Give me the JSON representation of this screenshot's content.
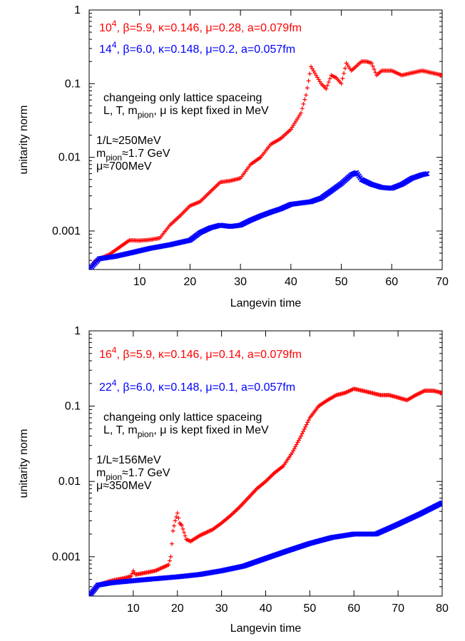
{
  "chart_data": [
    {
      "type": "scatter",
      "xlabel": "Langevin time",
      "ylabel": "unitarity norm",
      "yscale": "log",
      "xlim": [
        0,
        70
      ],
      "ylim": [
        0.0003,
        1
      ],
      "xticks": [
        10,
        20,
        30,
        40,
        50,
        60,
        70
      ],
      "yticks": [
        {
          "value": 0.001,
          "label": "0.001"
        },
        {
          "value": 0.01,
          "label": "0.01"
        },
        {
          "value": 0.1,
          "label": "0.1"
        },
        {
          "value": 1,
          "label": "1"
        }
      ],
      "grid": false,
      "legend": "top-left",
      "series": [
        {
          "legend_base": "10",
          "legend_exp": "4",
          "legend_rest": ", β=5.9, κ=0.146, μ=0.28, a=0.079fm",
          "color": "#ff0000",
          "marker": "plus",
          "points": [
            [
              0,
              0.0003
            ],
            [
              1,
              0.00038
            ],
            [
              2,
              0.00042
            ],
            [
              4,
              0.00048
            ],
            [
              6,
              0.0006
            ],
            [
              8,
              0.00075
            ],
            [
              10,
              0.00074
            ],
            [
              12,
              0.00076
            ],
            [
              14,
              0.0008
            ],
            [
              16,
              0.0012
            ],
            [
              18,
              0.0016
            ],
            [
              20,
              0.0022
            ],
            [
              22,
              0.0025
            ],
            [
              24,
              0.0034
            ],
            [
              26,
              0.0046
            ],
            [
              28,
              0.0048
            ],
            [
              30,
              0.0052
            ],
            [
              32,
              0.008
            ],
            [
              34,
              0.01
            ],
            [
              36,
              0.015
            ],
            [
              38,
              0.018
            ],
            [
              40,
              0.024
            ],
            [
              42,
              0.04
            ],
            [
              43,
              0.07
            ],
            [
              44,
              0.17
            ],
            [
              45,
              0.13
            ],
            [
              46,
              0.1
            ],
            [
              47,
              0.085
            ],
            [
              48,
              0.13
            ],
            [
              49,
              0.12
            ],
            [
              50,
              0.1
            ],
            [
              51,
              0.19
            ],
            [
              52,
              0.15
            ],
            [
              54,
              0.2
            ],
            [
              55,
              0.2
            ],
            [
              56,
              0.19
            ],
            [
              57,
              0.13
            ],
            [
              58,
              0.15
            ],
            [
              60,
              0.15
            ],
            [
              62,
              0.13
            ],
            [
              64,
              0.14
            ],
            [
              66,
              0.15
            ],
            [
              68,
              0.14
            ],
            [
              70,
              0.13
            ]
          ]
        },
        {
          "legend_base": "14",
          "legend_exp": "4",
          "legend_rest": ", β=6.0, κ=0.148, μ=0.2, a=0.057fm",
          "color": "#0000ff",
          "marker": "cross",
          "points": [
            [
              0,
              0.0003
            ],
            [
              2,
              0.00042
            ],
            [
              5,
              0.00045
            ],
            [
              8,
              0.0005
            ],
            [
              12,
              0.00058
            ],
            [
              16,
              0.00065
            ],
            [
              20,
              0.00075
            ],
            [
              22,
              0.00095
            ],
            [
              24,
              0.0011
            ],
            [
              26,
              0.0012
            ],
            [
              28,
              0.00115
            ],
            [
              30,
              0.0012
            ],
            [
              32,
              0.0014
            ],
            [
              34,
              0.0016
            ],
            [
              36,
              0.0018
            ],
            [
              38,
              0.002
            ],
            [
              40,
              0.0023
            ],
            [
              42,
              0.0024
            ],
            [
              44,
              0.0025
            ],
            [
              46,
              0.0028
            ],
            [
              48,
              0.0035
            ],
            [
              50,
              0.0044
            ],
            [
              52,
              0.0058
            ],
            [
              53,
              0.0062
            ],
            [
              54,
              0.005
            ],
            [
              56,
              0.0043
            ],
            [
              58,
              0.0039
            ],
            [
              60,
              0.0038
            ],
            [
              62,
              0.0043
            ],
            [
              64,
              0.0052
            ],
            [
              66,
              0.0058
            ],
            [
              67,
              0.006
            ]
          ]
        }
      ],
      "annotations": [
        {
          "lines": [
            [
              {
                "t": "changeing only lattice spaceing"
              }
            ],
            [
              {
                "t": "L, T, m"
              },
              {
                "t": "pion",
                "sub": true
              },
              {
                "t": ", μ is kept fixed in MeV"
              }
            ]
          ]
        },
        {
          "lines": [
            [
              {
                "t": "1/L≈250MeV"
              }
            ],
            [
              {
                "t": "m"
              },
              {
                "t": "pion",
                "sub": true
              },
              {
                "t": "≈1.7 GeV"
              }
            ],
            [
              {
                "t": "μ≈700MeV"
              }
            ]
          ]
        }
      ]
    },
    {
      "type": "scatter",
      "xlabel": "Langevin time",
      "ylabel": "unitarity norm",
      "yscale": "log",
      "xlim": [
        0,
        80
      ],
      "ylim": [
        0.0003,
        1
      ],
      "xticks": [
        10,
        20,
        30,
        40,
        50,
        60,
        70,
        80
      ],
      "yticks": [
        {
          "value": 0.001,
          "label": "0.001"
        },
        {
          "value": 0.01,
          "label": "0.01"
        },
        {
          "value": 0.1,
          "label": "0.1"
        },
        {
          "value": 1,
          "label": "1"
        }
      ],
      "grid": false,
      "legend": "top-left",
      "series": [
        {
          "legend_base": "16",
          "legend_exp": "4",
          "legend_rest": ", β=5.9, κ=0.146, μ=0.14, a=0.079fm",
          "color": "#ff0000",
          "marker": "plus",
          "points": [
            [
              0,
              0.0003
            ],
            [
              2,
              0.00042
            ],
            [
              5,
              0.00048
            ],
            [
              8,
              0.00052
            ],
            [
              9.5,
              0.00055
            ],
            [
              10,
              0.00065
            ],
            [
              10.5,
              0.00058
            ],
            [
              12,
              0.0006
            ],
            [
              15,
              0.00065
            ],
            [
              18,
              0.00078
            ],
            [
              18.5,
              0.001
            ],
            [
              19,
              0.0022
            ],
            [
              19.5,
              0.003
            ],
            [
              20,
              0.0038
            ],
            [
              20.5,
              0.0028
            ],
            [
              21,
              0.0026
            ],
            [
              22,
              0.0017
            ],
            [
              23,
              0.0016
            ],
            [
              25,
              0.0019
            ],
            [
              28,
              0.0023
            ],
            [
              30,
              0.0028
            ],
            [
              32,
              0.0035
            ],
            [
              34,
              0.0045
            ],
            [
              36,
              0.006
            ],
            [
              38,
              0.008
            ],
            [
              40,
              0.01
            ],
            [
              42,
              0.013
            ],
            [
              44,
              0.016
            ],
            [
              46,
              0.024
            ],
            [
              48,
              0.04
            ],
            [
              50,
              0.07
            ],
            [
              52,
              0.1
            ],
            [
              54,
              0.12
            ],
            [
              56,
              0.14
            ],
            [
              58,
              0.15
            ],
            [
              60,
              0.17
            ],
            [
              62,
              0.16
            ],
            [
              64,
              0.15
            ],
            [
              66,
              0.14
            ],
            [
              68,
              0.14
            ],
            [
              70,
              0.13
            ],
            [
              72,
              0.12
            ],
            [
              74,
              0.14
            ],
            [
              76,
              0.16
            ],
            [
              78,
              0.16
            ],
            [
              80,
              0.15
            ]
          ]
        },
        {
          "legend_base": "22",
          "legend_exp": "4",
          "legend_rest": ", β=6.0, κ=0.148, μ=0.1, a=0.057fm",
          "color": "#0000ff",
          "marker": "cross",
          "points": [
            [
              0,
              0.0003
            ],
            [
              2,
              0.00042
            ],
            [
              5,
              0.00045
            ],
            [
              10,
              0.00048
            ],
            [
              15,
              0.00051
            ],
            [
              20,
              0.00054
            ],
            [
              25,
              0.00058
            ],
            [
              30,
              0.00065
            ],
            [
              35,
              0.00075
            ],
            [
              40,
              0.00095
            ],
            [
              45,
              0.0012
            ],
            [
              50,
              0.0015
            ],
            [
              55,
              0.0018
            ],
            [
              60,
              0.002
            ],
            [
              65,
              0.002
            ],
            [
              70,
              0.0027
            ],
            [
              75,
              0.0037
            ],
            [
              80,
              0.0052
            ]
          ]
        }
      ],
      "annotations": [
        {
          "lines": [
            [
              {
                "t": "changeing only lattice spaceing"
              }
            ],
            [
              {
                "t": "L, T, m"
              },
              {
                "t": "pion",
                "sub": true
              },
              {
                "t": ", μ is kept fixed in MeV"
              }
            ]
          ]
        },
        {
          "lines": [
            [
              {
                "t": "1/L≈156MeV"
              }
            ],
            [
              {
                "t": "m"
              },
              {
                "t": "pion",
                "sub": true
              },
              {
                "t": "≈1.7 GeV"
              }
            ],
            [
              {
                "t": "μ≈350MeV"
              }
            ]
          ]
        }
      ]
    }
  ]
}
